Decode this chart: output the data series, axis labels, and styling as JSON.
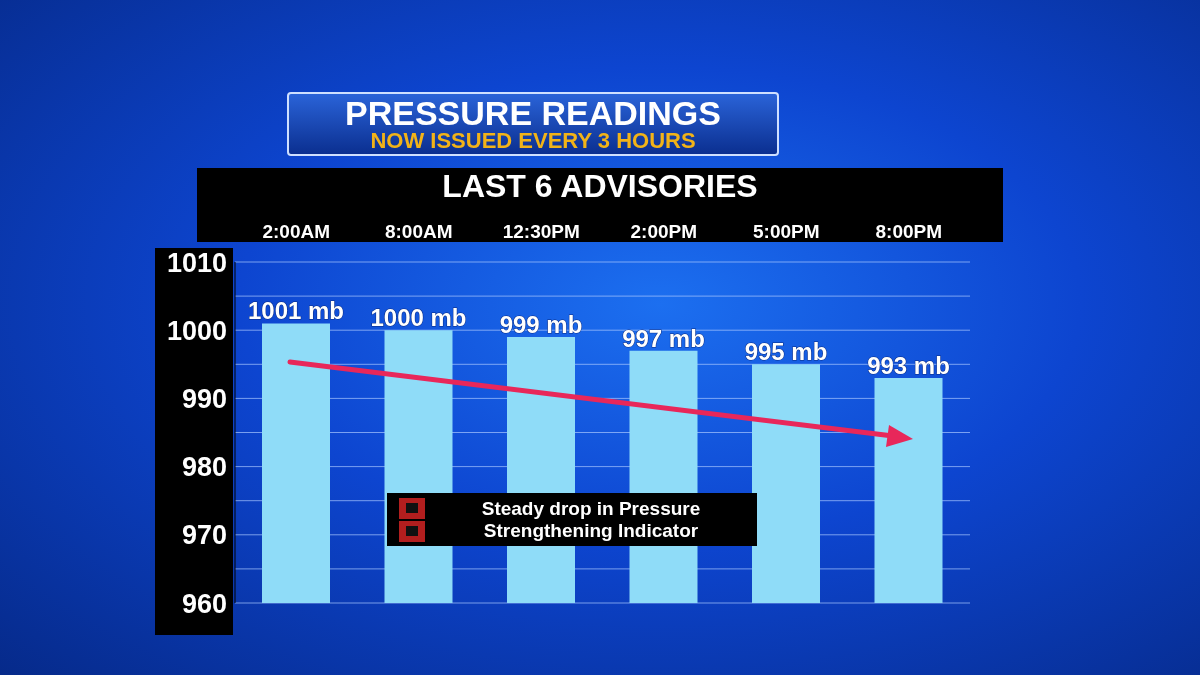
{
  "chart_data": {
    "type": "bar",
    "title": "PRESSURE READINGS",
    "subtitle": "NOW ISSUED EVERY 3 HOURS",
    "xlabel": "LAST 6 ADVISORIES",
    "categories": [
      "2:00AM",
      "8:00AM",
      "12:30PM",
      "2:00PM",
      "5:00PM",
      "8:00PM"
    ],
    "values": [
      1001,
      1000,
      999,
      997,
      995,
      993
    ],
    "value_labels": [
      "1001 mb",
      "1000 mb",
      "999 mb",
      "997 mb",
      "995 mb",
      "993 mb"
    ],
    "color": "#8fdcf8",
    "ylim": [
      960,
      1010
    ],
    "yticks": [
      960,
      {
        "value": 965,
        "label": null
      },
      970,
      {
        "value": 975,
        "label": null
      },
      980,
      {
        "value": 985,
        "label": null
      },
      990,
      {
        "value": 995,
        "label": null
      },
      1000,
      {
        "value": 1005,
        "label": null
      },
      1010
    ],
    "grid": "y",
    "annotations": [
      "Steady drop in Pressure",
      "Strengthening Indicator"
    ]
  }
}
